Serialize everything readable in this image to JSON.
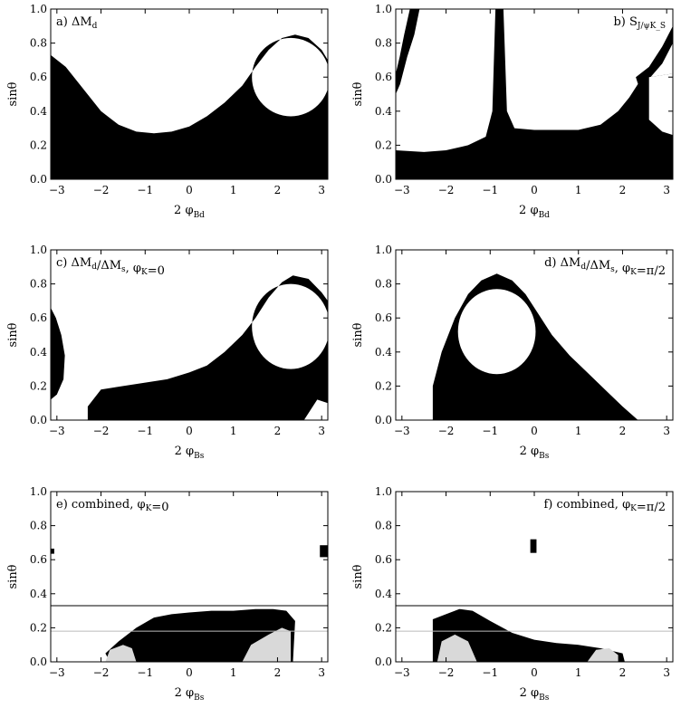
{
  "colors": {
    "region": "#000000",
    "region_light": "#d9d9d9",
    "background": "#ffffff",
    "refline_dark": "#000000",
    "refline_light": "#bbbbbb"
  },
  "chart_data": [
    {
      "type": "area",
      "panel_label": "a) ΔM",
      "panel_label_sub": "d",
      "xlabel": "2 φ",
      "xlabel_sub": "Bd",
      "ylabel": "sinθ",
      "xlim": [
        -3.14,
        3.14
      ],
      "ylim": [
        0,
        1
      ],
      "xticks": [
        "-3",
        "-2",
        "-1",
        "0",
        "1",
        "2",
        "3"
      ],
      "yticks": [
        "0.0",
        "0.2",
        "0.4",
        "0.6",
        "0.8",
        "1.0"
      ],
      "region": {
        "lower": [
          [
            -3.14,
            0
          ],
          [
            3.14,
            0
          ]
        ],
        "upper": [
          [
            -3.14,
            0.73
          ],
          [
            -2.8,
            0.66
          ],
          [
            -2.4,
            0.53
          ],
          [
            -2.0,
            0.4
          ],
          [
            -1.6,
            0.32
          ],
          [
            -1.2,
            0.28
          ],
          [
            -0.8,
            0.27
          ],
          [
            -0.4,
            0.28
          ],
          [
            0,
            0.31
          ],
          [
            0.4,
            0.37
          ],
          [
            0.8,
            0.45
          ],
          [
            1.2,
            0.55
          ],
          [
            1.5,
            0.66
          ],
          [
            1.8,
            0.76
          ],
          [
            2.1,
            0.83
          ],
          [
            2.4,
            0.85
          ],
          [
            2.7,
            0.83
          ],
          [
            3.0,
            0.76
          ],
          [
            3.14,
            0.7
          ]
        ],
        "hole": {
          "cx": 2.3,
          "cy": 0.6,
          "rx": 0.88,
          "ry": 0.23
        }
      }
    },
    {
      "type": "area",
      "panel_label": "b) S",
      "panel_label_sub": "J/ψK_S",
      "xlabel": "2 φ",
      "xlabel_sub": "Bd",
      "ylabel": "sinθ",
      "xlim": [
        -3.14,
        3.14
      ],
      "ylim": [
        0,
        1
      ],
      "xticks": [
        "-3",
        "-2",
        "-1",
        "0",
        "1",
        "2",
        "3"
      ],
      "yticks": [
        "0.0",
        "0.2",
        "0.4",
        "0.6",
        "0.8",
        "1.0"
      ],
      "region": {
        "upper": [
          [
            -3.14,
            0.17
          ],
          [
            -2.5,
            0.16
          ],
          [
            -2.0,
            0.17
          ],
          [
            -1.5,
            0.2
          ],
          [
            -1.1,
            0.25
          ],
          [
            -0.95,
            0.4
          ],
          [
            -0.88,
            1.0
          ],
          [
            -0.7,
            1.0
          ],
          [
            -0.62,
            0.4
          ],
          [
            -0.45,
            0.3
          ],
          [
            0,
            0.29
          ],
          [
            0.5,
            0.29
          ],
          [
            1.0,
            0.29
          ],
          [
            1.5,
            0.32
          ],
          [
            1.9,
            0.4
          ],
          [
            2.15,
            0.48
          ],
          [
            2.35,
            0.56
          ],
          [
            2.6,
            0.6
          ],
          [
            3.14,
            0.62
          ]
        ],
        "arc_left": [
          [
            -3.14,
            0.62
          ],
          [
            -3.05,
            0.72
          ],
          [
            -2.95,
            0.85
          ],
          [
            -2.82,
            1.0
          ],
          [
            -2.6,
            1.0
          ],
          [
            -2.72,
            0.85
          ],
          [
            -2.88,
            0.72
          ],
          [
            -3.04,
            0.56
          ],
          [
            -3.14,
            0.5
          ]
        ],
        "arc_right": [
          [
            2.3,
            0.6
          ],
          [
            2.6,
            0.66
          ],
          [
            2.9,
            0.78
          ],
          [
            3.14,
            0.9
          ],
          [
            3.14,
            0.8
          ],
          [
            2.9,
            0.68
          ],
          [
            2.6,
            0.59
          ],
          [
            2.4,
            0.52
          ]
        ],
        "notch_right": [
          [
            2.6,
            0.6
          ],
          [
            2.6,
            0.35
          ],
          [
            2.9,
            0.28
          ],
          [
            3.14,
            0.26
          ],
          [
            3.14,
            0.62
          ]
        ]
      }
    },
    {
      "type": "area",
      "panel_label": "c) ΔM",
      "panel_label_sub": "d",
      "panel_label_rest": "/ΔM",
      "panel_label_rest_sub": "s",
      "panel_label_tail": ", φ",
      "panel_label_tail_sub": "K",
      "panel_label_end": "=0",
      "xlabel": "2 φ",
      "xlabel_sub": "Bs",
      "ylabel": "sinθ",
      "xlim": [
        -3.14,
        3.14
      ],
      "ylim": [
        0,
        1
      ],
      "xticks": [
        "-3",
        "-2",
        "-1",
        "0",
        "1",
        "2",
        "3"
      ],
      "yticks": [
        "0.0",
        "0.2",
        "0.4",
        "0.6",
        "0.8",
        "1.0"
      ],
      "region": {
        "left_blob": [
          [
            -3.14,
            0.66
          ],
          [
            -3.02,
            0.6
          ],
          [
            -2.9,
            0.5
          ],
          [
            -2.82,
            0.38
          ],
          [
            -2.85,
            0.24
          ],
          [
            -3.0,
            0.15
          ],
          [
            -3.14,
            0.12
          ]
        ],
        "main": [
          [
            -2.3,
            0.0
          ],
          [
            -2.3,
            0.08
          ],
          [
            -2.0,
            0.18
          ],
          [
            -1.5,
            0.2
          ],
          [
            -1.0,
            0.22
          ],
          [
            -0.5,
            0.24
          ],
          [
            0,
            0.28
          ],
          [
            0.4,
            0.32
          ],
          [
            0.8,
            0.4
          ],
          [
            1.2,
            0.5
          ],
          [
            1.5,
            0.6
          ],
          [
            1.8,
            0.72
          ],
          [
            2.1,
            0.81
          ],
          [
            2.35,
            0.85
          ],
          [
            2.7,
            0.83
          ],
          [
            3.0,
            0.75
          ],
          [
            3.14,
            0.7
          ],
          [
            3.14,
            0.1
          ],
          [
            2.9,
            0.12
          ],
          [
            2.6,
            0.0
          ]
        ],
        "hole": {
          "cx": 2.3,
          "cy": 0.55,
          "rx": 0.88,
          "ry": 0.25
        }
      }
    },
    {
      "type": "area",
      "panel_label": "d) ΔM",
      "panel_label_sub": "d",
      "panel_label_rest": "/ΔM",
      "panel_label_rest_sub": "s",
      "panel_label_tail": ", φ",
      "panel_label_tail_sub": "K",
      "panel_label_end": "=π/2",
      "xlabel": "2 φ",
      "xlabel_sub": "Bs",
      "ylabel": "sinθ",
      "xlim": [
        -3.14,
        3.14
      ],
      "ylim": [
        0,
        1
      ],
      "xticks": [
        "-3",
        "-2",
        "-1",
        "0",
        "1",
        "2",
        "3"
      ],
      "yticks": [
        "0.0",
        "0.2",
        "0.4",
        "0.6",
        "0.8",
        "1.0"
      ],
      "region": {
        "main": [
          [
            -2.3,
            0.0
          ],
          [
            -2.3,
            0.2
          ],
          [
            -2.1,
            0.4
          ],
          [
            -1.8,
            0.6
          ],
          [
            -1.5,
            0.74
          ],
          [
            -1.2,
            0.82
          ],
          [
            -0.85,
            0.86
          ],
          [
            -0.5,
            0.82
          ],
          [
            -0.2,
            0.74
          ],
          [
            0.1,
            0.62
          ],
          [
            0.4,
            0.5
          ],
          [
            0.8,
            0.38
          ],
          [
            1.2,
            0.28
          ],
          [
            1.6,
            0.18
          ],
          [
            2.0,
            0.08
          ],
          [
            2.35,
            0.0
          ]
        ],
        "hole": {
          "cx": -0.85,
          "cy": 0.52,
          "rx": 0.88,
          "ry": 0.25
        }
      }
    },
    {
      "type": "scatter",
      "panel_label": "e) combined, φ",
      "panel_label_sub": "K",
      "panel_label_end": "=0",
      "xlabel": "2 φ",
      "xlabel_sub": "Bs",
      "ylabel": "sinθ",
      "xlim": [
        -3.14,
        3.14
      ],
      "ylim": [
        0,
        1
      ],
      "xticks": [
        "-3",
        "-2",
        "-1",
        "0",
        "1",
        "2",
        "3"
      ],
      "yticks": [
        "0.0",
        "0.2",
        "0.4",
        "0.6",
        "0.8",
        "1.0"
      ],
      "hlines": [
        {
          "y": 0.33,
          "style": "dark"
        },
        {
          "y": 0.18,
          "style": "light"
        }
      ],
      "region": {
        "main": [
          [
            -1.8,
            0.0
          ],
          [
            -1.9,
            0.05
          ],
          [
            -1.6,
            0.12
          ],
          [
            -1.2,
            0.2
          ],
          [
            -0.8,
            0.26
          ],
          [
            -0.4,
            0.28
          ],
          [
            0,
            0.29
          ],
          [
            0.5,
            0.3
          ],
          [
            1.0,
            0.3
          ],
          [
            1.5,
            0.31
          ],
          [
            1.9,
            0.31
          ],
          [
            2.2,
            0.3
          ],
          [
            2.4,
            0.24
          ],
          [
            2.35,
            0.0
          ]
        ],
        "light": [
          {
            "poly": [
              [
                -1.9,
                0.0
              ],
              [
                -1.8,
                0.07
              ],
              [
                -1.5,
                0.1
              ],
              [
                -1.3,
                0.08
              ],
              [
                -1.2,
                0.0
              ]
            ]
          },
          {
            "poly": [
              [
                1.2,
                0.0
              ],
              [
                1.4,
                0.1
              ],
              [
                1.8,
                0.16
              ],
              [
                2.1,
                0.2
              ],
              [
                2.3,
                0.18
              ],
              [
                2.3,
                0.0
              ]
            ]
          }
        ],
        "spots": [
          {
            "x": -3.1,
            "y": 0.65,
            "w": 0.08,
            "h": 0.03
          },
          {
            "x": 3.05,
            "y": 0.65,
            "w": 0.18,
            "h": 0.07
          }
        ]
      }
    },
    {
      "type": "scatter",
      "panel_label": "f) combined, φ",
      "panel_label_sub": "K",
      "panel_label_end": "=π/2",
      "xlabel": "2 φ",
      "xlabel_sub": "Bs",
      "ylabel": "sinθ",
      "xlim": [
        -3.14,
        3.14
      ],
      "ylim": [
        0,
        1
      ],
      "xticks": [
        "-3",
        "-2",
        "-1",
        "0",
        "1",
        "2",
        "3"
      ],
      "yticks": [
        "0.0",
        "0.2",
        "0.4",
        "0.6",
        "0.8",
        "1.0"
      ],
      "hlines": [
        {
          "y": 0.33,
          "style": "dark"
        },
        {
          "y": 0.18,
          "style": "light"
        }
      ],
      "region": {
        "main": [
          [
            -2.3,
            0.0
          ],
          [
            -2.3,
            0.25
          ],
          [
            -2.0,
            0.28
          ],
          [
            -1.7,
            0.31
          ],
          [
            -1.4,
            0.3
          ],
          [
            -1.0,
            0.24
          ],
          [
            -0.5,
            0.17
          ],
          [
            0,
            0.13
          ],
          [
            0.5,
            0.11
          ],
          [
            1.0,
            0.1
          ],
          [
            1.5,
            0.08
          ],
          [
            2.0,
            0.05
          ],
          [
            2.05,
            0.0
          ]
        ],
        "light": [
          {
            "poly": [
              [
                -2.2,
                0.0
              ],
              [
                -2.1,
                0.12
              ],
              [
                -1.8,
                0.16
              ],
              [
                -1.5,
                0.12
              ],
              [
                -1.3,
                0.0
              ]
            ]
          },
          {
            "poly": [
              [
                1.2,
                0.0
              ],
              [
                1.4,
                0.07
              ],
              [
                1.7,
                0.08
              ],
              [
                1.9,
                0.04
              ],
              [
                1.9,
                0.0
              ]
            ]
          }
        ],
        "spots": [
          {
            "x": -0.02,
            "y": 0.68,
            "w": 0.14,
            "h": 0.08
          }
        ]
      }
    }
  ]
}
